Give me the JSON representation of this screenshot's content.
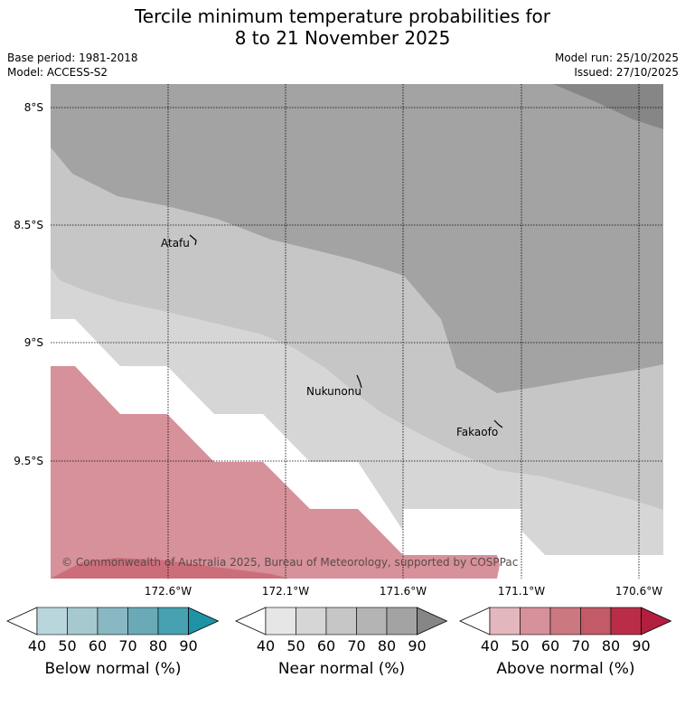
{
  "header": {
    "title_line1": "Tercile minimum temperature probabilities for",
    "title_line2": "8 to 21 November 2025",
    "base_period": "Base period: 1981-2018",
    "model": "Model: ACCESS-S2",
    "model_run": "Model run: 25/10/2025",
    "issued": "Issued: 27/10/2025"
  },
  "map": {
    "lat_labels": [
      "8°S",
      "8.5°S",
      "9°S",
      "9.5°S"
    ],
    "lon_labels": [
      "172.6°W",
      "172.1°W",
      "171.6°W",
      "171.1°W",
      "170.6°W"
    ],
    "places": [
      {
        "name": "Atafu"
      },
      {
        "name": "Nukunonu"
      },
      {
        "name": "Fakaofo"
      }
    ],
    "copyright": "© Commonwealth of Australia 2025, Bureau of Meteorology, supported by COSPPac",
    "colors": {
      "near_50": "#d6d6d6",
      "near_60": "#c6c6c6",
      "near_80": "#a3a3a3",
      "near_90": "#868686",
      "above_60": "#d6919a",
      "above_70": "#cc6e7a"
    }
  },
  "colorbars": [
    {
      "name": "below",
      "label": "Below normal (%)",
      "ticks": [
        "40",
        "50",
        "60",
        "70",
        "80",
        "90"
      ],
      "colors": [
        "#ffffff",
        "#bad6dd",
        "#a6c8cf",
        "#89b8c3",
        "#6aaab7",
        "#48a1b0",
        "#1e93a6"
      ]
    },
    {
      "name": "near",
      "label": "Near normal (%)",
      "ticks": [
        "40",
        "50",
        "60",
        "70",
        "80",
        "90"
      ],
      "colors": [
        "#ffffff",
        "#e6e6e6",
        "#d6d6d6",
        "#c6c6c6",
        "#b4b4b4",
        "#a3a3a3",
        "#868686"
      ]
    },
    {
      "name": "above",
      "label": "Above normal (%)",
      "ticks": [
        "40",
        "50",
        "60",
        "70",
        "80",
        "90"
      ],
      "colors": [
        "#ffffff",
        "#e3b7bd",
        "#d6919a",
        "#cc7880",
        "#c25a68",
        "#b92d48",
        "#b3203f"
      ]
    }
  ]
}
